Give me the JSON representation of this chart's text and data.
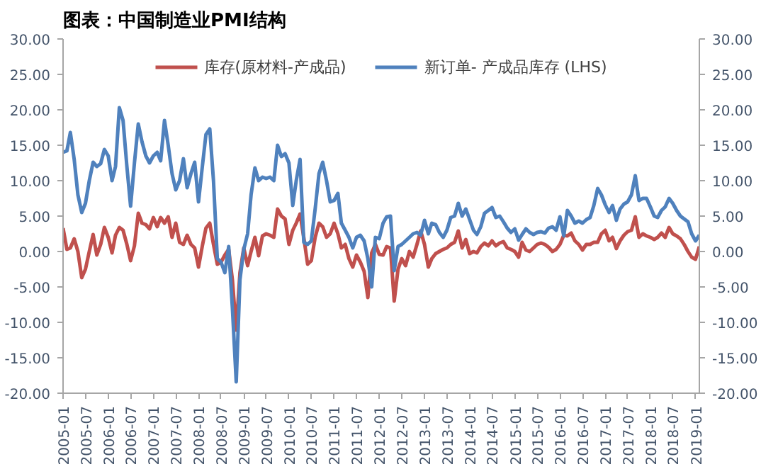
{
  "chart_data": {
    "type": "line",
    "title": "图表：中国制造业PMI结构",
    "x": [
      "2005-01",
      "2005-02",
      "2005-03",
      "2005-04",
      "2005-05",
      "2005-06",
      "2005-07",
      "2005-08",
      "2005-09",
      "2005-10",
      "2005-11",
      "2005-12",
      "2006-01",
      "2006-02",
      "2006-03",
      "2006-04",
      "2006-05",
      "2006-06",
      "2006-07",
      "2006-08",
      "2006-09",
      "2006-10",
      "2006-11",
      "2006-12",
      "2007-01",
      "2007-02",
      "2007-03",
      "2007-04",
      "2007-05",
      "2007-06",
      "2007-07",
      "2007-08",
      "2007-09",
      "2007-10",
      "2007-11",
      "2007-12",
      "2008-01",
      "2008-02",
      "2008-03",
      "2008-04",
      "2008-05",
      "2008-06",
      "2008-07",
      "2008-08",
      "2008-09",
      "2008-10",
      "2008-11",
      "2008-12",
      "2009-01",
      "2009-02",
      "2009-03",
      "2009-04",
      "2009-05",
      "2009-06",
      "2009-07",
      "2009-08",
      "2009-09",
      "2009-10",
      "2009-11",
      "2009-12",
      "2010-01",
      "2010-02",
      "2010-03",
      "2010-04",
      "2010-05",
      "2010-06",
      "2010-07",
      "2010-08",
      "2010-09",
      "2010-10",
      "2010-11",
      "2010-12",
      "2011-01",
      "2011-02",
      "2011-03",
      "2011-04",
      "2011-05",
      "2011-06",
      "2011-07",
      "2011-08",
      "2011-09",
      "2011-10",
      "2011-11",
      "2011-12",
      "2012-01",
      "2012-02",
      "2012-03",
      "2012-04",
      "2012-05",
      "2012-06",
      "2012-07",
      "2012-08",
      "2012-09",
      "2012-10",
      "2012-11",
      "2012-12",
      "2013-01",
      "2013-02",
      "2013-03",
      "2013-04",
      "2013-05",
      "2013-06",
      "2013-07",
      "2013-08",
      "2013-09",
      "2013-10",
      "2013-11",
      "2013-12",
      "2014-01",
      "2014-02",
      "2014-03",
      "2014-04",
      "2014-05",
      "2014-06",
      "2014-07",
      "2014-08",
      "2014-09",
      "2014-10",
      "2014-11",
      "2014-12",
      "2015-01",
      "2015-02",
      "2015-03",
      "2015-04",
      "2015-05",
      "2015-06",
      "2015-07",
      "2015-08",
      "2015-09",
      "2015-10",
      "2015-11",
      "2015-12",
      "2016-01",
      "2016-02",
      "2016-03",
      "2016-04",
      "2016-05",
      "2016-06",
      "2016-07",
      "2016-08",
      "2016-09",
      "2016-10",
      "2016-11",
      "2016-12",
      "2017-01",
      "2017-02",
      "2017-03",
      "2017-04",
      "2017-05",
      "2017-06",
      "2017-07",
      "2017-08",
      "2017-09",
      "2017-10",
      "2017-11",
      "2017-12",
      "2018-01",
      "2018-02",
      "2018-03",
      "2018-04",
      "2018-05",
      "2018-06",
      "2018-07",
      "2018-08",
      "2018-09",
      "2018-10",
      "2018-11",
      "2018-12",
      "2019-01",
      "2019-02"
    ],
    "series": [
      {
        "name": "库存(原材料-产成品)",
        "color": "#c0504d",
        "values": [
          3.3,
          0.3,
          0.5,
          1.8,
          0,
          -3.7,
          -2.5,
          0,
          2.4,
          -0.5,
          1,
          3.4,
          2,
          -0.2,
          2.3,
          3.4,
          3,
          1,
          -1.3,
          0.8,
          5.4,
          4,
          3.8,
          3.2,
          4.8,
          3.5,
          4.8,
          4,
          4.9,
          2,
          4,
          1.3,
          1,
          2.3,
          1,
          0.5,
          -2.2,
          0.8,
          3.3,
          4,
          1,
          -1.8,
          -1.5,
          -0.5,
          0.3,
          -4,
          -11.1,
          -3,
          0.5,
          -2,
          0,
          2,
          -0.6,
          2.2,
          2.5,
          2.3,
          2,
          6,
          5,
          4.6,
          1,
          3,
          4,
          5.3,
          2,
          -1.8,
          -1.3,
          2,
          4,
          3.5,
          2,
          2.5,
          4,
          2.5,
          0.5,
          1,
          -1,
          -2.2,
          -0.5,
          -1.5,
          -2.8,
          -6.5,
          -0.2,
          1,
          -0.4,
          -0.5,
          0.7,
          0.5,
          -7,
          -2.5,
          -1,
          -2,
          0,
          -0.8,
          1,
          2.9,
          1,
          -2.2,
          -1,
          -0.3,
          0,
          0.3,
          0.5,
          1,
          1.3,
          2.9,
          0.5,
          1.7,
          -0.3,
          0,
          -0.2,
          0.7,
          1.2,
          0.8,
          1.5,
          0.8,
          1.2,
          1.4,
          0.5,
          0.3,
          0,
          -0.8,
          1.3,
          0.2,
          0,
          0.5,
          1,
          1.2,
          1,
          0.6,
          0,
          0.3,
          1,
          2.3,
          2.2,
          2.6,
          1.5,
          1,
          0.2,
          1,
          1,
          1.3,
          1.3,
          2.5,
          3,
          1.5,
          2,
          0.4,
          1.5,
          2.3,
          2.8,
          3,
          4.9,
          2,
          2.5,
          2.2,
          2,
          1.7,
          2,
          2.6,
          2,
          3.4,
          2.5,
          2.2,
          1.8,
          1,
          0,
          -0.8,
          -1.1,
          0.7
        ]
      },
      {
        "name": "新订单- 产成品库存 (LHS)",
        "color": "#4f81bd",
        "values": [
          14,
          14.2,
          16.8,
          13,
          8,
          5.5,
          6.8,
          10,
          12.6,
          12,
          12.4,
          14.4,
          13.5,
          10,
          12,
          20.3,
          18.5,
          12,
          6.4,
          12.5,
          18,
          15.5,
          13.5,
          12.5,
          13.5,
          14,
          12.8,
          18.5,
          15,
          11,
          8.7,
          10,
          13.1,
          9,
          11,
          12.6,
          7,
          12,
          16.5,
          17.3,
          10,
          -1,
          -1.5,
          -3,
          0.7,
          -8,
          -18.4,
          -4,
          0.3,
          2.5,
          8,
          11.8,
          10,
          10.5,
          10.3,
          10.5,
          10,
          15,
          13.4,
          13.8,
          12.5,
          6.5,
          10,
          13,
          1.3,
          1,
          1.5,
          6,
          11,
          12.6,
          10,
          7,
          7.2,
          8.2,
          4,
          3,
          2,
          0.5,
          2,
          2.3,
          1.5,
          -1,
          -5,
          2,
          1.8,
          4,
          4.9,
          5,
          -2.7,
          0.7,
          1,
          1.5,
          2,
          2.5,
          2.7,
          2.3,
          4.4,
          2.5,
          4,
          3.8,
          2.7,
          2,
          3,
          4.8,
          5,
          6.8,
          5,
          6,
          4.5,
          3,
          2.4,
          3.5,
          5.4,
          5.8,
          6.2,
          4.8,
          5,
          4.2,
          3.3,
          2.7,
          3.2,
          1.6,
          2.4,
          3.2,
          2.7,
          2.4,
          2.7,
          2.8,
          2.6,
          3.3,
          3.5,
          3,
          4.9,
          2.2,
          5.8,
          5,
          4,
          4.3,
          4,
          4.5,
          4.8,
          6.5,
          8.9,
          8,
          6.6,
          5.5,
          6.5,
          4.4,
          6,
          6.7,
          7,
          8,
          10.7,
          7.2,
          7.5,
          7.5,
          6.3,
          5,
          4.8,
          5.8,
          6.3,
          7.5,
          6.8,
          5.8,
          5,
          4.6,
          4.2,
          2.5,
          1.5,
          2.3
        ]
      }
    ],
    "xlim": [
      "2005-01",
      "2019-02"
    ],
    "xticks": [
      "2005-01",
      "2005-07",
      "2006-01",
      "2006-07",
      "2007-01",
      "2007-07",
      "2008-01",
      "2008-07",
      "2009-01",
      "2009-07",
      "2010-01",
      "2010-07",
      "2011-01",
      "2011-07",
      "2012-01",
      "2012-07",
      "2013-01",
      "2013-07",
      "2014-01",
      "2014-07",
      "2015-01",
      "2015-07",
      "2016-01",
      "2016-07",
      "2017-01",
      "2017-07",
      "2018-01",
      "2018-07",
      "2019-01"
    ],
    "ylim": [
      -20,
      30
    ],
    "yticks": [
      {
        "value": -20,
        "label": "-20.00"
      },
      {
        "value": -15,
        "label": "-15.00"
      },
      {
        "value": -10,
        "label": "-10.00"
      },
      {
        "value": -5,
        "label": "-5.00"
      },
      {
        "value": 0,
        "label": "0.00"
      },
      {
        "value": 5,
        "label": "5.00"
      },
      {
        "value": 10,
        "label": "10.00"
      },
      {
        "value": 15,
        "label": "15.00"
      },
      {
        "value": 20,
        "label": "20.00"
      },
      {
        "value": 25,
        "label": "25.00"
      },
      {
        "value": 30,
        "label": "30.00"
      }
    ],
    "y2lim": [
      -20,
      30
    ],
    "y2ticks": [
      {
        "value": -20,
        "label": "-20.00"
      },
      {
        "value": -15,
        "label": "-15.00"
      },
      {
        "value": -10,
        "label": "-10.00"
      },
      {
        "value": -5,
        "label": "-5.00"
      },
      {
        "value": 0,
        "label": "0.00"
      },
      {
        "value": 5,
        "label": "5.00"
      },
      {
        "value": 10,
        "label": "10.00"
      },
      {
        "value": 15,
        "label": "15.00"
      },
      {
        "value": 20,
        "label": "20.00"
      },
      {
        "value": 25,
        "label": "25.00"
      },
      {
        "value": 30,
        "label": "30.00"
      }
    ],
    "grid": false,
    "legend": "top",
    "marker": "none",
    "line_style": "solid"
  }
}
